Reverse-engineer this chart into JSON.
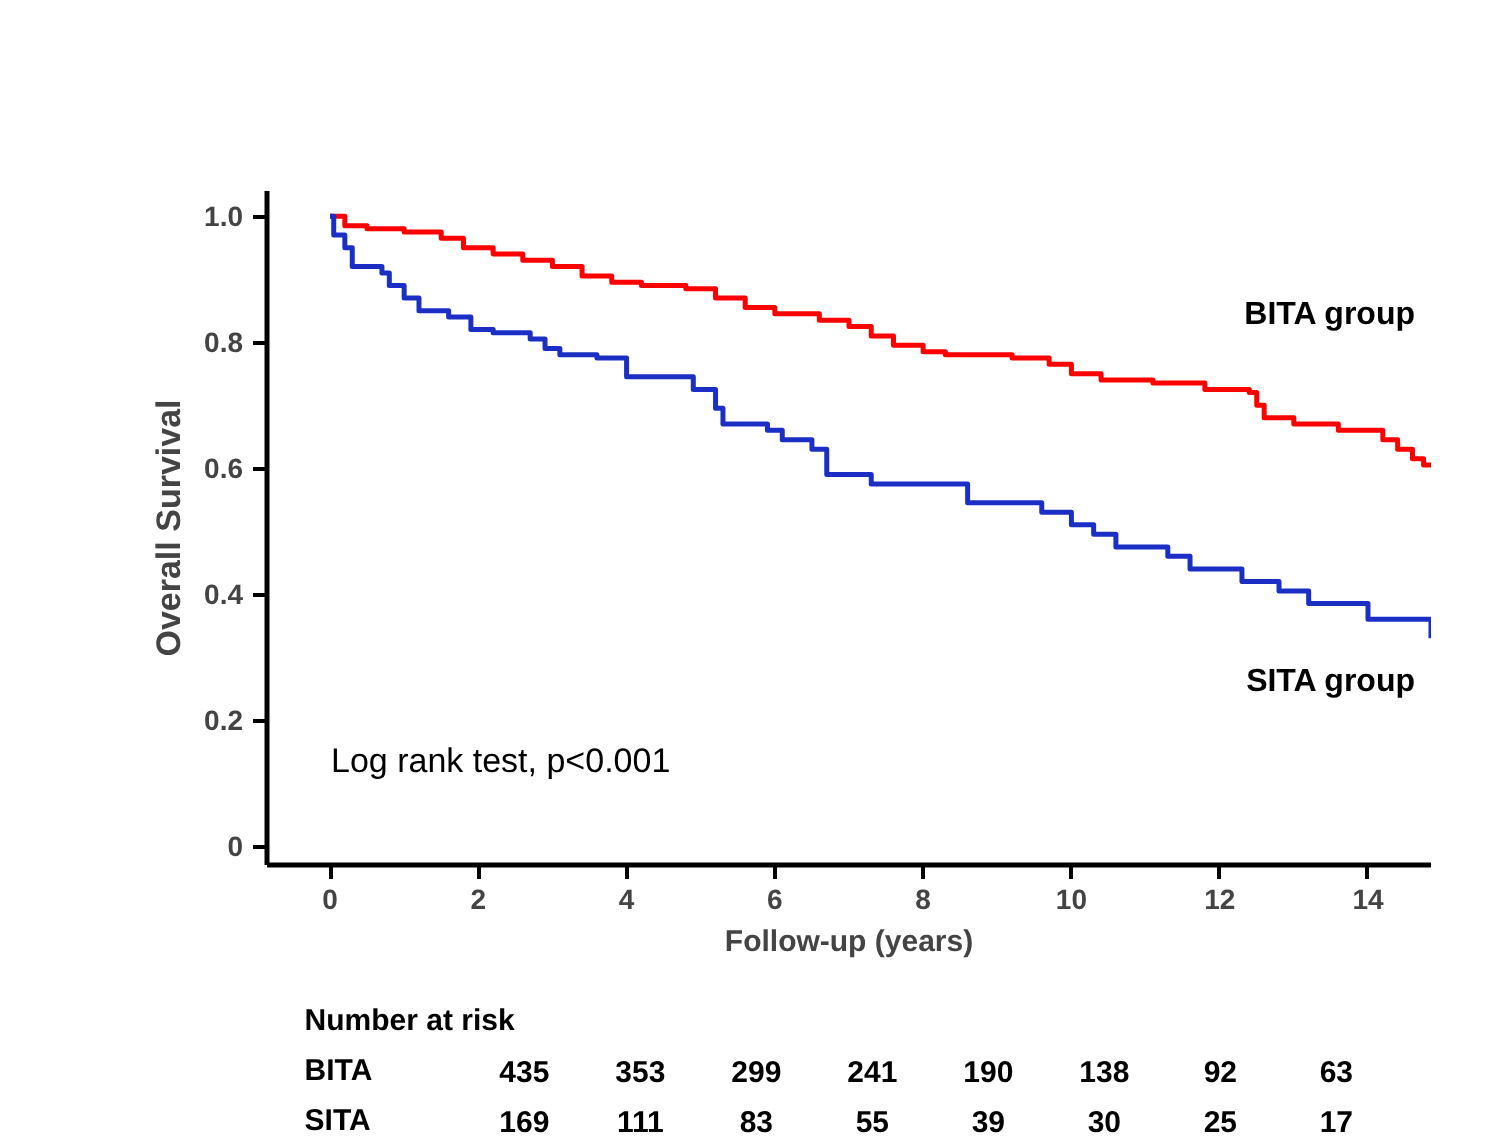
{
  "chart_data": {
    "type": "step",
    "xlabel": "Follow-up (years)",
    "ylabel": "Overall Survival",
    "x": [
      0,
      0.2,
      0.5,
      1.0,
      1.5,
      1.8,
      2.2,
      2.6,
      3.0,
      3.4,
      3.8,
      4.2,
      4.8,
      5.2,
      5.6,
      6.0,
      6.6,
      7.0,
      7.3,
      7.6,
      8.0,
      8.3,
      9.2,
      9.7,
      10.0,
      10.4,
      11.1,
      11.8,
      12.4,
      12.5,
      12.6,
      13.0,
      13.6,
      14.2,
      14.4,
      14.6,
      14.75,
      14.85
    ],
    "series": [
      {
        "name": "BITA group",
        "color": "#ff0000",
        "values": [
          1.0,
          0.985,
          0.98,
          0.975,
          0.965,
          0.95,
          0.94,
          0.93,
          0.92,
          0.905,
          0.895,
          0.89,
          0.885,
          0.87,
          0.855,
          0.845,
          0.835,
          0.825,
          0.81,
          0.795,
          0.785,
          0.78,
          0.775,
          0.765,
          0.75,
          0.74,
          0.735,
          0.725,
          0.72,
          0.7,
          0.68,
          0.67,
          0.66,
          0.645,
          0.63,
          0.615,
          0.605,
          0.605
        ]
      },
      {
        "name": "SITA group",
        "color": "#1c2fc4",
        "x": [
          0,
          0.05,
          0.2,
          0.3,
          0.7,
          0.8,
          1.0,
          1.2,
          1.6,
          1.9,
          2.2,
          2.7,
          2.9,
          3.1,
          3.6,
          4.0,
          4.9,
          5.2,
          5.3,
          5.9,
          6.1,
          6.5,
          6.7,
          7.3,
          8.6,
          9.6,
          10.0,
          10.3,
          10.6,
          11.3,
          11.6,
          12.3,
          12.8,
          13.2,
          14.0,
          14.85
        ],
        "values": [
          1.0,
          0.97,
          0.95,
          0.92,
          0.91,
          0.89,
          0.87,
          0.85,
          0.84,
          0.82,
          0.815,
          0.805,
          0.79,
          0.78,
          0.775,
          0.745,
          0.725,
          0.695,
          0.67,
          0.66,
          0.645,
          0.63,
          0.59,
          0.575,
          0.545,
          0.53,
          0.51,
          0.495,
          0.475,
          0.46,
          0.44,
          0.42,
          0.405,
          0.385,
          0.36,
          0.33
        ]
      }
    ],
    "xlim": [
      -0.85,
      14.85
    ],
    "xticks": [
      0,
      2,
      4,
      6,
      8,
      10,
      12,
      14
    ],
    "ylim": [
      -0.03,
      1.04
    ],
    "yticks": [
      {
        "value": 0,
        "label": "0"
      },
      0.2,
      0.4,
      0.6,
      0.8,
      {
        "value": 1,
        "label": "1.0"
      }
    ],
    "grid": false,
    "legend": false,
    "annotations": [
      "Log rank test, p<0.001",
      "Number at risk",
      "BITA",
      "435",
      "353",
      "299",
      "241",
      "190",
      "138",
      "92",
      "63",
      "SITA",
      "169",
      "111",
      "83",
      "55",
      "39",
      "30",
      "25",
      "17"
    ]
  }
}
